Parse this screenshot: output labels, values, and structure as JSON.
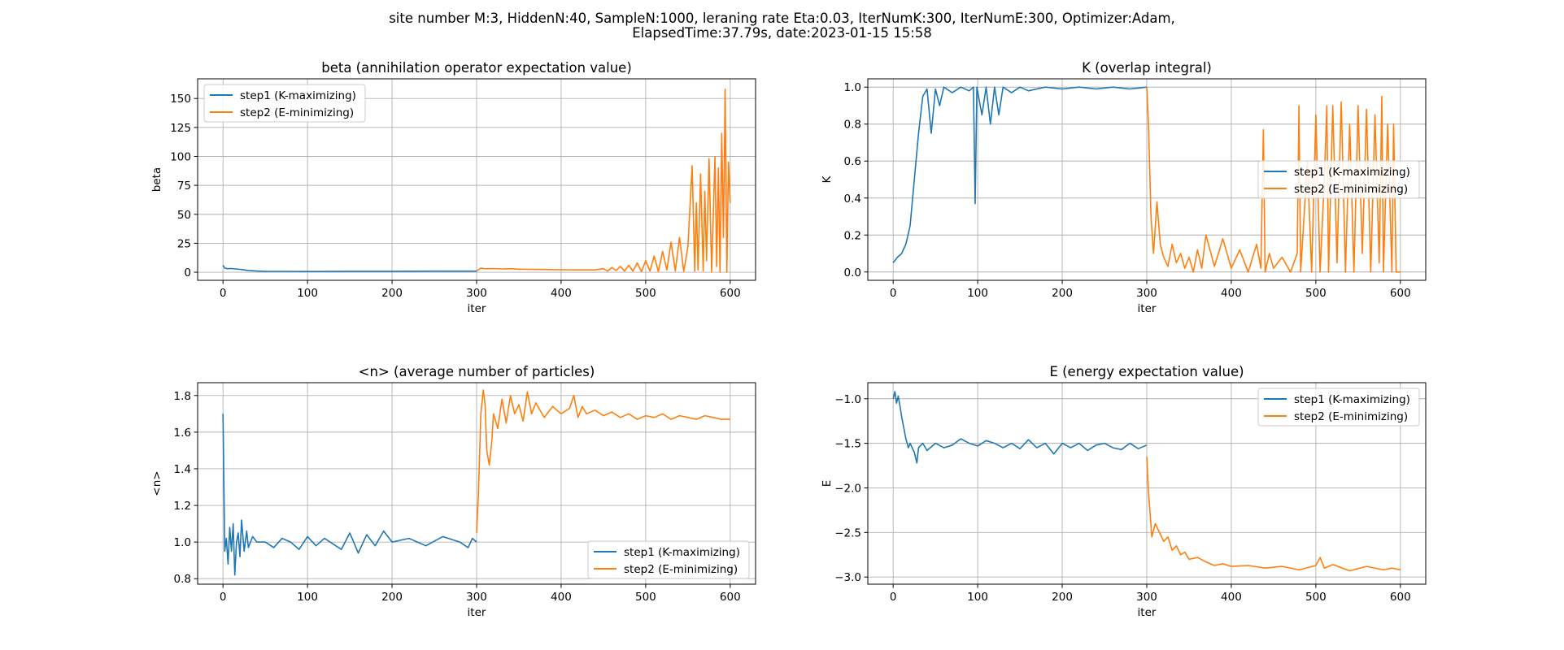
{
  "figure": {
    "suptitle_line1": "site number M:3, HiddenN:40, SampleN:1000, leraning rate Eta:0.03, IterNumK:300, IterNumE:300, Optimizer:Adam,",
    "suptitle_line2": "ElapsedTime:37.79s, date:2023-01-15  15:58"
  },
  "colors": {
    "step1": "#1f77b4",
    "step2": "#ff7f0e",
    "grid": "#b0b0b0"
  },
  "chart_data": [
    {
      "type": "line",
      "title": "beta (annihilation operator expectation value)",
      "xlabel": "iter",
      "ylabel": "beta",
      "xlim": [
        -30,
        630
      ],
      "ylim": [
        -7,
        167
      ],
      "xticks": [
        0,
        100,
        200,
        300,
        400,
        500,
        600
      ],
      "yticks": [
        0,
        25,
        50,
        75,
        100,
        125,
        150
      ],
      "ytick_labels": [
        "0",
        "25",
        "50",
        "75",
        "100",
        "125",
        "150"
      ],
      "grid": true,
      "legend_loc": "upper-left",
      "series": [
        {
          "name": "step1 (K-maximizing)",
          "color": "#1f77b4",
          "x": [
            0,
            2,
            5,
            10,
            15,
            20,
            25,
            30,
            40,
            50,
            75,
            100,
            150,
            200,
            250,
            300
          ],
          "y": [
            6,
            3.5,
            3,
            3.2,
            2.8,
            2.5,
            2,
            1.5,
            1,
            0.8,
            0.7,
            0.6,
            0.8,
            0.8,
            0.9,
            0.9
          ]
        },
        {
          "name": "step2 (E-minimizing)",
          "color": "#ff7f0e",
          "x": [
            300,
            305,
            310,
            320,
            330,
            340,
            350,
            360,
            380,
            400,
            420,
            440,
            450,
            455,
            460,
            465,
            470,
            475,
            480,
            485,
            490,
            495,
            500,
            505,
            510,
            515,
            520,
            525,
            530,
            535,
            540,
            545,
            550,
            555,
            558,
            560,
            562,
            565,
            568,
            570,
            572,
            575,
            578,
            580,
            582,
            584,
            586,
            588,
            590,
            592,
            594,
            596,
            598,
            600
          ],
          "y": [
            1,
            3.5,
            3,
            3.2,
            2.8,
            3,
            2.6,
            2.5,
            2.3,
            2.1,
            2,
            2,
            3,
            1,
            4,
            1.5,
            5,
            1,
            6,
            1,
            8,
            0.5,
            10,
            1,
            14,
            0.5,
            18,
            2,
            26,
            1,
            30,
            0.5,
            22,
            92,
            1,
            60,
            2,
            85,
            1,
            70,
            10,
            98,
            0,
            50,
            100,
            5,
            90,
            0,
            120,
            30,
            158,
            0,
            95,
            60
          ]
        }
      ]
    },
    {
      "type": "line",
      "title": "K (overlap integral)",
      "xlabel": "iter",
      "ylabel": "K",
      "xlim": [
        -30,
        630
      ],
      "ylim": [
        -0.045,
        1.045
      ],
      "xticks": [
        0,
        100,
        200,
        300,
        400,
        500,
        600
      ],
      "yticks": [
        0,
        0.2,
        0.4,
        0.6,
        0.8,
        1.0
      ],
      "ytick_labels": [
        "0.0",
        "0.2",
        "0.4",
        "0.6",
        "0.8",
        "1.0"
      ],
      "grid": true,
      "legend_loc": "center-right",
      "series": [
        {
          "name": "step1 (K-maximizing)",
          "color": "#1f77b4",
          "x": [
            0,
            5,
            10,
            15,
            20,
            25,
            30,
            35,
            40,
            45,
            50,
            55,
            60,
            70,
            80,
            90,
            95,
            97,
            99,
            105,
            110,
            115,
            120,
            125,
            130,
            140,
            150,
            160,
            180,
            200,
            220,
            240,
            260,
            280,
            300
          ],
          "y": [
            0.05,
            0.08,
            0.1,
            0.15,
            0.25,
            0.5,
            0.75,
            0.95,
            0.99,
            0.75,
            0.99,
            0.9,
            1,
            0.97,
            1,
            0.98,
            1,
            0.37,
            1,
            0.85,
            1,
            0.8,
            1,
            0.85,
            1,
            0.97,
            1,
            0.98,
            1,
            0.99,
            1,
            0.99,
            1,
            0.99,
            1
          ]
        },
        {
          "name": "step2 (E-minimizing)",
          "color": "#ff7f0e",
          "x": [
            300,
            302,
            305,
            308,
            312,
            316,
            320,
            325,
            330,
            335,
            340,
            345,
            350,
            355,
            360,
            365,
            370,
            380,
            390,
            400,
            410,
            420,
            430,
            435,
            438,
            440,
            445,
            450,
            460,
            470,
            478,
            480,
            482,
            490,
            495,
            500,
            505,
            510,
            513,
            515,
            520,
            525,
            530,
            535,
            540,
            545,
            550,
            555,
            560,
            565,
            570,
            575,
            578,
            580,
            585,
            590,
            592,
            595,
            600
          ],
          "y": [
            1,
            0.8,
            0.3,
            0.1,
            0.38,
            0.15,
            0.08,
            0.03,
            0.15,
            0.05,
            0.1,
            0.02,
            0.08,
            0.0,
            0.12,
            0.02,
            0.2,
            0.03,
            0.18,
            0.02,
            0.12,
            0.0,
            0.15,
            0.02,
            0.77,
            0.0,
            0.1,
            0.02,
            0.08,
            0.0,
            0.1,
            0.9,
            0.0,
            0.6,
            0.0,
            0.85,
            0.0,
            0.5,
            0.9,
            0.0,
            0.9,
            0.05,
            0.92,
            0.0,
            0.8,
            0.0,
            0.9,
            0.1,
            0.88,
            0.0,
            0.85,
            0.05,
            0.95,
            0.0,
            0.8,
            0.0,
            0.8,
            0.0,
            0.0
          ]
        }
      ]
    },
    {
      "type": "line",
      "title": "<n> (average number of particles)",
      "xlabel": "iter",
      "ylabel": "<n>",
      "xlim": [
        -30,
        630
      ],
      "ylim": [
        0.77,
        1.87
      ],
      "xticks": [
        0,
        100,
        200,
        300,
        400,
        500,
        600
      ],
      "yticks": [
        0.8,
        1.0,
        1.2,
        1.4,
        1.6,
        1.8
      ],
      "ytick_labels": [
        "0.8",
        "1.0",
        "1.2",
        "1.4",
        "1.6",
        "1.8"
      ],
      "grid": true,
      "legend_loc": "lower-right",
      "series": [
        {
          "name": "step1 (K-maximizing)",
          "color": "#1f77b4",
          "x": [
            0,
            2,
            4,
            6,
            8,
            10,
            12,
            14,
            16,
            18,
            20,
            22,
            25,
            28,
            30,
            35,
            40,
            50,
            60,
            70,
            80,
            90,
            100,
            110,
            120,
            140,
            150,
            160,
            170,
            180,
            190,
            200,
            220,
            240,
            260,
            280,
            290,
            295,
            300
          ],
          "y": [
            1.7,
            0.95,
            1.02,
            0.88,
            1.08,
            0.95,
            1.1,
            0.82,
            1.0,
            1.05,
            0.92,
            1.12,
            0.95,
            1.06,
            0.97,
            1.03,
            1.0,
            1.0,
            0.97,
            1.02,
            1.0,
            0.96,
            1.03,
            0.98,
            1.02,
            0.96,
            1.05,
            0.94,
            1.04,
            0.98,
            1.06,
            1.0,
            1.02,
            0.98,
            1.03,
            1.0,
            0.97,
            1.02,
            1.0
          ]
        },
        {
          "name": "step2 (E-minimizing)",
          "color": "#ff7f0e",
          "x": [
            300,
            302,
            305,
            308,
            310,
            312,
            315,
            318,
            320,
            325,
            330,
            335,
            340,
            345,
            350,
            355,
            360,
            365,
            370,
            380,
            390,
            400,
            410,
            415,
            420,
            425,
            430,
            440,
            450,
            460,
            470,
            480,
            490,
            500,
            510,
            520,
            530,
            540,
            550,
            560,
            570,
            580,
            590,
            600
          ],
          "y": [
            1.05,
            1.25,
            1.7,
            1.83,
            1.75,
            1.5,
            1.42,
            1.55,
            1.7,
            1.62,
            1.78,
            1.65,
            1.8,
            1.7,
            1.75,
            1.66,
            1.82,
            1.7,
            1.76,
            1.68,
            1.74,
            1.7,
            1.73,
            1.8,
            1.68,
            1.74,
            1.7,
            1.72,
            1.69,
            1.71,
            1.68,
            1.7,
            1.67,
            1.69,
            1.68,
            1.7,
            1.67,
            1.69,
            1.68,
            1.67,
            1.69,
            1.68,
            1.67,
            1.67
          ]
        }
      ]
    },
    {
      "type": "line",
      "title": "E (energy expectation value)",
      "xlabel": "iter",
      "ylabel": "E",
      "xlim": [
        -30,
        630
      ],
      "ylim": [
        -3.08,
        -0.82
      ],
      "xticks": [
        0,
        100,
        200,
        300,
        400,
        500,
        600
      ],
      "yticks": [
        -3.0,
        -2.5,
        -2.0,
        -1.5,
        -1.0
      ],
      "ytick_labels": [
        "−3.0",
        "−2.5",
        "−2.0",
        "−1.5",
        "−1.0"
      ],
      "grid": true,
      "legend_loc": "upper-right",
      "series": [
        {
          "name": "step1 (K-maximizing)",
          "color": "#1f77b4",
          "x": [
            0,
            2,
            4,
            6,
            8,
            10,
            12,
            15,
            18,
            20,
            25,
            28,
            30,
            35,
            40,
            50,
            60,
            70,
            80,
            90,
            100,
            110,
            120,
            130,
            140,
            150,
            160,
            170,
            180,
            190,
            200,
            210,
            220,
            230,
            240,
            250,
            260,
            270,
            280,
            290,
            300
          ],
          "y": [
            -1.0,
            -0.92,
            -1.05,
            -0.97,
            -1.08,
            -1.2,
            -1.3,
            -1.45,
            -1.55,
            -1.5,
            -1.6,
            -1.72,
            -1.55,
            -1.5,
            -1.58,
            -1.5,
            -1.55,
            -1.52,
            -1.45,
            -1.5,
            -1.53,
            -1.47,
            -1.5,
            -1.55,
            -1.5,
            -1.56,
            -1.46,
            -1.55,
            -1.5,
            -1.62,
            -1.5,
            -1.55,
            -1.5,
            -1.58,
            -1.52,
            -1.5,
            -1.55,
            -1.57,
            -1.5,
            -1.56,
            -1.52
          ]
        },
        {
          "name": "step2 (E-minimizing)",
          "color": "#ff7f0e",
          "x": [
            300,
            302,
            304,
            306,
            310,
            315,
            320,
            325,
            330,
            335,
            340,
            345,
            350,
            360,
            370,
            380,
            390,
            400,
            420,
            440,
            460,
            480,
            500,
            505,
            510,
            520,
            540,
            560,
            580,
            590,
            600
          ],
          "y": [
            -1.65,
            -2.05,
            -2.3,
            -2.55,
            -2.4,
            -2.5,
            -2.6,
            -2.55,
            -2.7,
            -2.65,
            -2.75,
            -2.72,
            -2.8,
            -2.78,
            -2.83,
            -2.87,
            -2.85,
            -2.88,
            -2.87,
            -2.9,
            -2.88,
            -2.92,
            -2.87,
            -2.78,
            -2.9,
            -2.86,
            -2.93,
            -2.88,
            -2.92,
            -2.9,
            -2.92
          ]
        }
      ]
    }
  ]
}
